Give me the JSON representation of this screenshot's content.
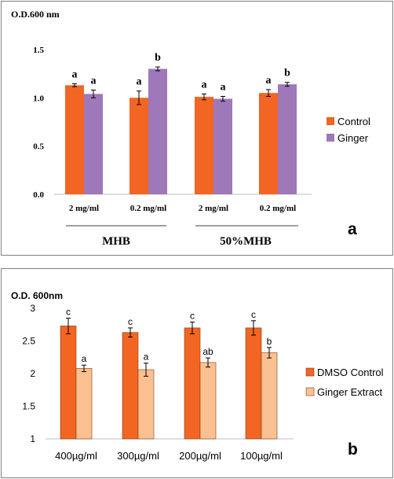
{
  "chart_data": [
    {
      "panel_label": "a",
      "type": "bar",
      "ylabel": "O.D.600 nm",
      "ylim": [
        0,
        1.5
      ],
      "yticks": [
        "0.0",
        "0.5",
        "1.0",
        "1.5"
      ],
      "categories": [
        "2 mg/ml",
        "0.2 mg/ml",
        "2 mg/ml",
        "0.2 mg/ml"
      ],
      "groups": [
        {
          "label": "MHB",
          "categories": [
            0,
            1
          ]
        },
        {
          "label": "50%MHB",
          "categories": [
            2,
            3
          ]
        }
      ],
      "series": [
        {
          "name": "Control",
          "color": "#f26522",
          "values": [
            1.13,
            1.0,
            1.01,
            1.05
          ],
          "errors": [
            0.015,
            0.07,
            0.03,
            0.035
          ],
          "letters": [
            "a",
            "a",
            "a",
            "a"
          ]
        },
        {
          "name": "Ginger",
          "color": "#9e78b8",
          "values": [
            1.04,
            1.3,
            0.99,
            1.14
          ],
          "errors": [
            0.04,
            0.02,
            0.025,
            0.02
          ],
          "letters": [
            "a",
            "b",
            "a",
            "b"
          ]
        }
      ],
      "legend_position": "right",
      "grid": false
    },
    {
      "panel_label": "b",
      "type": "bar",
      "ylabel": "O.D. 600nm",
      "ylim": [
        1,
        3
      ],
      "yticks": [
        "1",
        "1.5",
        "2",
        "2.5",
        "3"
      ],
      "categories": [
        "400µg/ml",
        "300µg/ml",
        "200µg/ml",
        "100µg/ml"
      ],
      "series": [
        {
          "name": "DMSO Control",
          "color": "#f26522",
          "values": [
            2.73,
            2.63,
            2.7,
            2.7
          ],
          "errors": [
            0.12,
            0.07,
            0.09,
            0.11
          ],
          "letters": [
            "c",
            "c",
            "c",
            "c"
          ]
        },
        {
          "name": "Ginger Extract",
          "color": "#fac090",
          "values": [
            2.08,
            2.06,
            2.17,
            2.32
          ],
          "errors": [
            0.05,
            0.1,
            0.07,
            0.08
          ],
          "letters": [
            "a",
            "a",
            "ab",
            "b"
          ]
        }
      ],
      "legend_position": "right",
      "grid": false
    }
  ]
}
